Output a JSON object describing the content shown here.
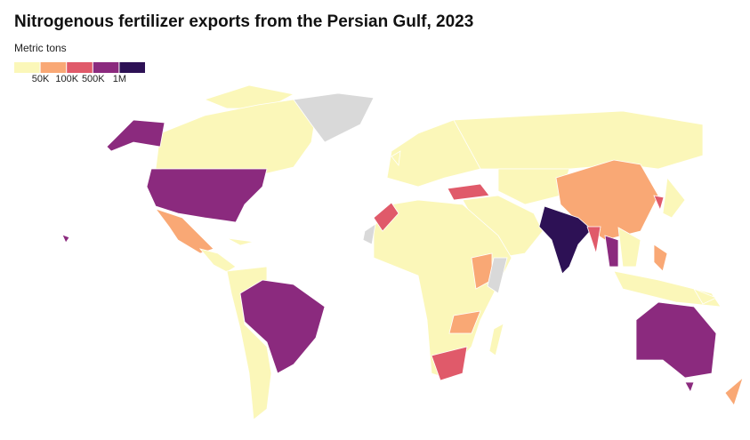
{
  "map": {
    "title": "Nitrogenous fertilizer exports from the Persian Gulf, 2023",
    "legend": {
      "title": "Metric tons",
      "colors": [
        "#fbf7b9",
        "#f9a875",
        "#e05a6a",
        "#8b2a7e",
        "#2d1155"
      ],
      "labels": [
        "50K",
        "100K",
        "500K",
        "1M"
      ]
    }
  }
}
